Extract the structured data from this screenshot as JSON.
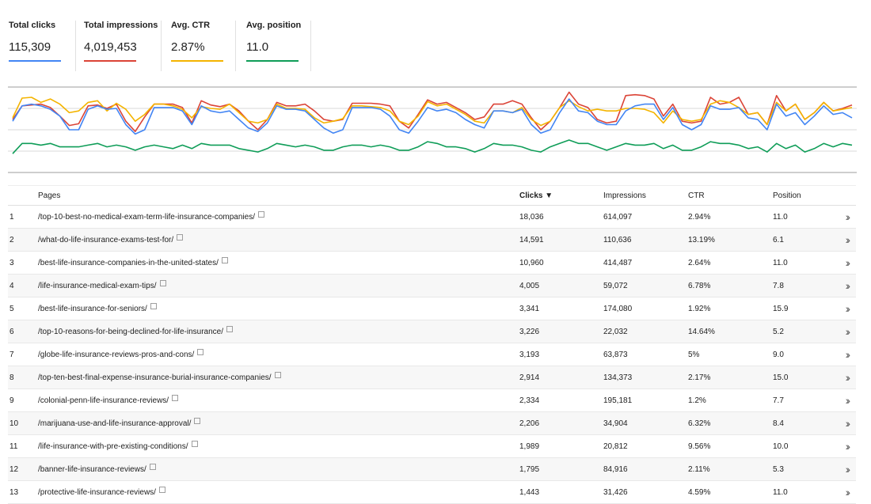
{
  "metrics": [
    {
      "label": "Total clicks",
      "value": "115,309",
      "color": "#4285f4"
    },
    {
      "label": "Total impressions",
      "value": "4,019,453",
      "color": "#db4437"
    },
    {
      "label": "Avg. CTR",
      "value": "2.87%",
      "color": "#f4b400"
    },
    {
      "label": "Avg. position",
      "value": "11.0",
      "color": "#0f9d58"
    }
  ],
  "table": {
    "headers": {
      "pages": "Pages",
      "clicks": "Clicks ▼",
      "impressions": "Impressions",
      "ctr": "CTR",
      "position": "Position"
    },
    "rows": [
      {
        "num": "1",
        "page": "/top-10-best-no-medical-exam-term-life-insurance-companies/",
        "clicks": "18,036",
        "impressions": "614,097",
        "ctr": "2.94%",
        "position": "11.0"
      },
      {
        "num": "2",
        "page": "/what-do-life-insurance-exams-test-for/",
        "clicks": "14,591",
        "impressions": "110,636",
        "ctr": "13.19%",
        "position": "6.1"
      },
      {
        "num": "3",
        "page": "/best-life-insurance-companies-in-the-united-states/",
        "clicks": "10,960",
        "impressions": "414,487",
        "ctr": "2.64%",
        "position": "11.0"
      },
      {
        "num": "4",
        "page": "/life-insurance-medical-exam-tips/",
        "clicks": "4,005",
        "impressions": "59,072",
        "ctr": "6.78%",
        "position": "7.8"
      },
      {
        "num": "5",
        "page": "/best-life-insurance-for-seniors/",
        "clicks": "3,341",
        "impressions": "174,080",
        "ctr": "1.92%",
        "position": "15.9"
      },
      {
        "num": "6",
        "page": "/top-10-reasons-for-being-declined-for-life-insurance/",
        "clicks": "3,226",
        "impressions": "22,032",
        "ctr": "14.64%",
        "position": "5.2"
      },
      {
        "num": "7",
        "page": "/globe-life-insurance-reviews-pros-and-cons/",
        "clicks": "3,193",
        "impressions": "63,873",
        "ctr": "5%",
        "position": "9.0"
      },
      {
        "num": "8",
        "page": "/top-ten-best-final-expense-insurance-burial-insurance-companies/",
        "clicks": "2,914",
        "impressions": "134,373",
        "ctr": "2.17%",
        "position": "15.0"
      },
      {
        "num": "9",
        "page": "/colonial-penn-life-insurance-reviews/",
        "clicks": "2,334",
        "impressions": "195,181",
        "ctr": "1.2%",
        "position": "7.7"
      },
      {
        "num": "10",
        "page": "/marijuana-use-and-life-insurance-approval/",
        "clicks": "2,206",
        "impressions": "34,904",
        "ctr": "6.32%",
        "position": "8.4"
      },
      {
        "num": "11",
        "page": "/life-insurance-with-pre-existing-conditions/",
        "clicks": "1,989",
        "impressions": "20,812",
        "ctr": "9.56%",
        "position": "10.0"
      },
      {
        "num": "12",
        "page": "/banner-life-insurance-reviews/",
        "clicks": "1,795",
        "impressions": "84,916",
        "ctr": "2.11%",
        "position": "5.3"
      },
      {
        "num": "13",
        "page": "/protective-life-insurance-reviews/",
        "clicks": "1,443",
        "impressions": "31,426",
        "ctr": "4.59%",
        "position": "11.0"
      }
    ]
  },
  "chart_data": {
    "type": "line",
    "grid": true,
    "x": [
      1,
      2,
      3,
      4,
      5,
      6,
      7,
      8,
      9,
      10,
      11,
      12,
      13,
      14,
      15,
      16,
      17,
      18,
      19,
      20,
      21,
      22,
      23,
      24,
      25,
      26,
      27,
      28,
      29,
      30,
      31,
      32,
      33,
      34,
      35,
      36,
      37,
      38,
      39,
      40,
      41,
      42,
      43,
      44,
      45,
      46,
      47,
      48,
      49,
      50,
      51,
      52,
      53,
      54,
      55,
      56,
      57,
      58,
      59,
      60,
      61,
      62,
      63,
      64,
      65,
      66,
      67,
      68,
      69,
      70,
      71,
      72,
      73,
      74,
      75,
      76,
      77,
      78,
      79,
      80,
      81,
      82,
      83,
      84,
      85,
      86,
      87,
      88,
      89,
      90
    ],
    "ylim": [
      0,
      100
    ],
    "series": [
      {
        "color": "#db4437",
        "values": [
          62,
          78,
          79,
          80,
          76,
          66,
          55,
          57,
          78,
          79,
          75,
          80,
          60,
          48,
          65,
          80,
          80,
          80,
          76,
          58,
          84,
          79,
          77,
          80,
          72,
          60,
          50,
          62,
          82,
          78,
          78,
          80,
          72,
          62,
          60,
          62,
          81,
          81,
          81,
          80,
          78,
          60,
          52,
          68,
          85,
          80,
          82,
          76,
          70,
          62,
          65,
          80,
          80,
          84,
          80,
          64,
          50,
          60,
          76,
          94,
          80,
          76,
          62,
          58,
          60,
          90,
          91,
          90,
          86,
          66,
          80,
          60,
          58,
          60,
          88,
          80,
          82,
          88,
          68,
          70,
          56,
          90,
          72,
          80,
          62,
          70,
          82,
          72,
          75,
          79
        ]
      },
      {
        "color": "#f4b400",
        "values": [
          64,
          87,
          88,
          82,
          86,
          80,
          70,
          72,
          82,
          84,
          72,
          81,
          74,
          60,
          68,
          80,
          80,
          78,
          74,
          64,
          77,
          75,
          74,
          80,
          70,
          60,
          58,
          62,
          80,
          75,
          75,
          74,
          64,
          58,
          60,
          63,
          78,
          78,
          77,
          76,
          72,
          60,
          56,
          66,
          83,
          78,
          80,
          74,
          68,
          60,
          58,
          72,
          72,
          70,
          76,
          62,
          55,
          60,
          76,
          84,
          77,
          72,
          74,
          72,
          72,
          75,
          75,
          74,
          70,
          58,
          72,
          62,
          60,
          62,
          80,
          84,
          82,
          76,
          68,
          70,
          56,
          82,
          72,
          80,
          62,
          70,
          82,
          72,
          74,
          76
        ]
      },
      {
        "color": "#4285f4",
        "values": [
          60,
          78,
          80,
          78,
          74,
          66,
          50,
          50,
          74,
          78,
          74,
          75,
          56,
          45,
          50,
          76,
          76,
          76,
          72,
          56,
          78,
          72,
          70,
          72,
          62,
          52,
          48,
          58,
          78,
          74,
          74,
          72,
          62,
          52,
          46,
          50,
          76,
          76,
          76,
          74,
          66,
          50,
          46,
          60,
          76,
          72,
          74,
          70,
          62,
          56,
          52,
          72,
          72,
          70,
          74,
          56,
          46,
          50,
          70,
          86,
          72,
          70,
          60,
          56,
          56,
          72,
          78,
          80,
          80,
          62,
          76,
          56,
          50,
          56,
          78,
          74,
          74,
          76,
          64,
          62,
          50,
          80,
          66,
          70,
          56,
          66,
          78,
          68,
          70,
          64
        ]
      },
      {
        "color": "#0f9d58",
        "values": [
          22,
          34,
          34,
          32,
          34,
          30,
          30,
          30,
          32,
          34,
          30,
          32,
          30,
          26,
          30,
          32,
          30,
          28,
          32,
          28,
          34,
          32,
          32,
          32,
          28,
          26,
          24,
          28,
          34,
          32,
          30,
          32,
          30,
          26,
          26,
          30,
          32,
          32,
          30,
          32,
          30,
          26,
          26,
          30,
          36,
          34,
          30,
          30,
          28,
          24,
          28,
          34,
          32,
          32,
          30,
          26,
          24,
          30,
          34,
          38,
          34,
          34,
          30,
          26,
          30,
          34,
          32,
          32,
          34,
          28,
          32,
          26,
          26,
          30,
          36,
          34,
          34,
          32,
          28,
          30,
          24,
          34,
          28,
          32,
          24,
          28,
          34,
          30,
          34,
          32
        ]
      }
    ]
  }
}
